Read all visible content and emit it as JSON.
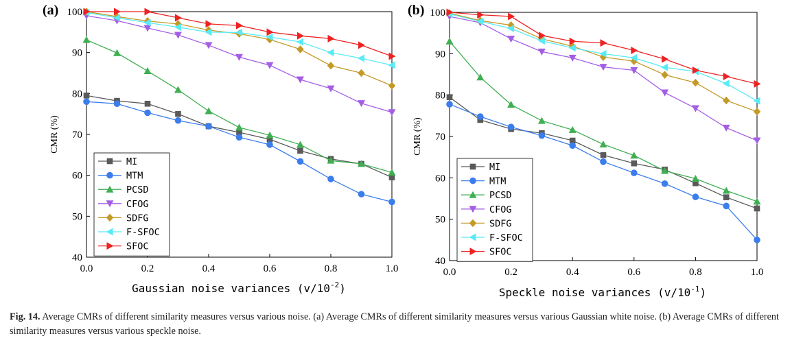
{
  "chart_data": [
    {
      "type": "line",
      "panel_label": "(a)",
      "xlabel": "Gaussian noise variances (v/10",
      "xlabel_exp": "-2",
      "xlabel_close": ")",
      "ylabel": "CMR (%)",
      "x": [
        0.0,
        0.1,
        0.2,
        0.3,
        0.4,
        0.5,
        0.6,
        0.7,
        0.8,
        0.9,
        1.0
      ],
      "xticks": [
        "0.0",
        "0.2",
        "0.4",
        "0.6",
        "0.8",
        "1.0"
      ],
      "yticks": [
        "40",
        "50",
        "60",
        "70",
        "80",
        "90",
        "100"
      ],
      "xlim": [
        0,
        1
      ],
      "ylim": [
        40,
        100
      ],
      "legend_position": "lower-left",
      "series": [
        {
          "name": "MI",
          "color": "#5a5a5a",
          "marker": "square",
          "values": [
            79.5,
            78.2,
            77.5,
            75.0,
            72.0,
            70.5,
            68.8,
            66.0,
            64.0,
            62.8,
            59.5
          ]
        },
        {
          "name": "MTM",
          "color": "#3b7ded",
          "marker": "circle",
          "values": [
            78.0,
            77.5,
            75.3,
            73.4,
            72.0,
            69.3,
            67.5,
            63.4,
            59.1,
            55.4,
            53.5
          ]
        },
        {
          "name": "PCSD",
          "color": "#3faf52",
          "marker": "triangle-up",
          "values": [
            93.1,
            89.9,
            85.5,
            80.9,
            75.7,
            71.7,
            69.8,
            67.5,
            63.6,
            62.8,
            60.7
          ]
        },
        {
          "name": "CFOG",
          "color": "#a45ee5",
          "marker": "triangle-down",
          "values": [
            99.0,
            97.8,
            96.0,
            94.3,
            91.8,
            88.9,
            86.9,
            83.4,
            81.2,
            77.6,
            75.4
          ]
        },
        {
          "name": "SDFG",
          "color": "#c49a27",
          "marker": "diamond",
          "values": [
            100.0,
            98.8,
            97.7,
            97.0,
            95.5,
            94.6,
            93.2,
            90.8,
            86.8,
            85.0,
            81.9
          ]
        },
        {
          "name": "F-SFOC",
          "color": "#58ebf7",
          "marker": "triangle-left",
          "values": [
            99.8,
            98.5,
            97.3,
            96.2,
            95.0,
            94.9,
            93.8,
            92.6,
            90.0,
            88.6,
            86.9
          ]
        },
        {
          "name": "SFOC",
          "color": "#ee2222",
          "marker": "triangle-right",
          "values": [
            100.0,
            100.0,
            100.0,
            98.5,
            97.0,
            96.6,
            95.0,
            94.1,
            93.4,
            91.8,
            89.1
          ]
        }
      ]
    },
    {
      "type": "line",
      "panel_label": "(b)",
      "xlabel": "Speckle noise variances (v/10",
      "xlabel_exp": "-1",
      "xlabel_close": ")",
      "ylabel": "CMR (%)",
      "x": [
        0.0,
        0.1,
        0.2,
        0.3,
        0.4,
        0.5,
        0.6,
        0.7,
        0.8,
        0.9,
        1.0
      ],
      "xticks": [
        "0.0",
        "0.2",
        "0.4",
        "0.6",
        "0.8",
        "1.0"
      ],
      "yticks": [
        "40",
        "50",
        "60",
        "70",
        "80",
        "90",
        "100"
      ],
      "xlim": [
        0,
        1
      ],
      "ylim": [
        40,
        100
      ],
      "legend_position": "lower-left",
      "series": [
        {
          "name": "MI",
          "color": "#5a5a5a",
          "marker": "square",
          "values": [
            79.5,
            74.0,
            71.8,
            70.8,
            69.0,
            65.5,
            63.5,
            62.0,
            58.7,
            55.3,
            52.6
          ]
        },
        {
          "name": "MTM",
          "color": "#3b7ded",
          "marker": "circle",
          "values": [
            77.8,
            74.8,
            72.3,
            70.2,
            67.8,
            63.9,
            61.2,
            58.6,
            55.4,
            53.2,
            45.0
          ]
        },
        {
          "name": "PCSD",
          "color": "#3faf52",
          "marker": "triangle-up",
          "values": [
            93.0,
            84.3,
            77.7,
            73.8,
            71.6,
            68.1,
            65.4,
            61.7,
            59.8,
            56.9,
            54.3
          ]
        },
        {
          "name": "CFOG",
          "color": "#a45ee5",
          "marker": "triangle-down",
          "values": [
            99.0,
            97.5,
            93.6,
            90.5,
            89.0,
            86.8,
            86.0,
            80.6,
            76.8,
            72.1,
            69.0
          ]
        },
        {
          "name": "SDFG",
          "color": "#c49a27",
          "marker": "diamond",
          "values": [
            99.8,
            98.0,
            96.9,
            93.6,
            91.8,
            89.2,
            88.2,
            84.9,
            83.0,
            78.7,
            76.0
          ]
        },
        {
          "name": "F-SFOC",
          "color": "#58ebf7",
          "marker": "triangle-left",
          "values": [
            99.6,
            97.8,
            96.1,
            93.1,
            91.4,
            90.0,
            89.0,
            86.7,
            85.7,
            82.8,
            78.6
          ]
        },
        {
          "name": "SFOC",
          "color": "#ee2222",
          "marker": "triangle-right",
          "values": [
            100.0,
            99.4,
            99.0,
            94.4,
            93.0,
            92.6,
            90.8,
            88.7,
            86.0,
            84.5,
            82.7
          ]
        }
      ]
    }
  ],
  "caption": {
    "label": "Fig. 14.",
    "text": "Average CMRs of different similarity measures versus various noise. (a) Average CMRs of different similarity measures versus various Gaussian white noise. (b) Average CMRs of different similarity measures versus various speckle noise."
  }
}
